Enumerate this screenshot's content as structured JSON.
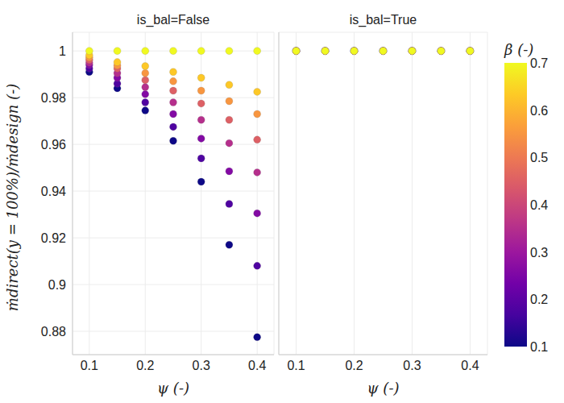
{
  "chart_data": {
    "type": "scatter",
    "xlabel": "ψ (-)",
    "ylabel": "ṁdirect(y = 100%)/ṁdesign (-)",
    "xlim": [
      0.07,
      0.43
    ],
    "xticks": [
      0.1,
      0.2,
      0.3,
      0.4
    ],
    "ylim": [
      0.87,
      1.008
    ],
    "yticks": [
      0.88,
      0.9,
      0.92,
      0.94,
      0.96,
      0.98,
      1
    ],
    "grid": true,
    "colorbar": {
      "title": "β (-)",
      "range": [
        0.1,
        0.7
      ],
      "ticks": [
        0.1,
        0.2,
        0.3,
        0.4,
        0.5,
        0.6,
        0.7
      ]
    },
    "panels": [
      {
        "title": "is_bal=False",
        "x": [
          0.1,
          0.15,
          0.2,
          0.25,
          0.3,
          0.35,
          0.4
        ],
        "beta": [
          0.1,
          0.18,
          0.26,
          0.35,
          0.45,
          0.55,
          0.63,
          0.7
        ],
        "y": [
          [
            0.991,
            0.9925,
            0.994,
            0.995,
            0.9962,
            0.9972,
            0.9982,
            1
          ],
          [
            0.984,
            0.986,
            0.9885,
            0.9905,
            0.9925,
            0.9938,
            0.9952,
            1
          ],
          [
            0.9745,
            0.978,
            0.9815,
            0.9845,
            0.9875,
            0.9905,
            0.9935,
            1
          ],
          [
            0.9615,
            0.9675,
            0.973,
            0.978,
            0.983,
            0.987,
            0.991,
            1
          ],
          [
            0.944,
            0.954,
            0.9625,
            0.9705,
            0.9775,
            0.983,
            0.9885,
            1
          ],
          [
            0.917,
            0.9345,
            0.9485,
            0.9605,
            0.9705,
            0.9785,
            0.9855,
            1
          ],
          [
            0.8775,
            0.908,
            0.9305,
            0.948,
            0.962,
            0.973,
            0.9825,
            1
          ]
        ]
      },
      {
        "title": "is_bal=True",
        "x": [
          0.1,
          0.15,
          0.2,
          0.25,
          0.3,
          0.35,
          0.4
        ],
        "beta": [
          0.1,
          0.18,
          0.26,
          0.35,
          0.45,
          0.55,
          0.63,
          0.7
        ],
        "y": [
          [
            1,
            1,
            1,
            1,
            1,
            1,
            1,
            1
          ],
          [
            1,
            1,
            1,
            1,
            1,
            1,
            1,
            1
          ],
          [
            1,
            1,
            1,
            1,
            1,
            1,
            1,
            1
          ],
          [
            1,
            1,
            1,
            1,
            1,
            1,
            1,
            1
          ],
          [
            1,
            1,
            1,
            1,
            1,
            1,
            1,
            1
          ],
          [
            1,
            1,
            1,
            1,
            1,
            1,
            1,
            1
          ],
          [
            1,
            1,
            1,
            1,
            1,
            1,
            1,
            1
          ]
        ]
      }
    ]
  }
}
